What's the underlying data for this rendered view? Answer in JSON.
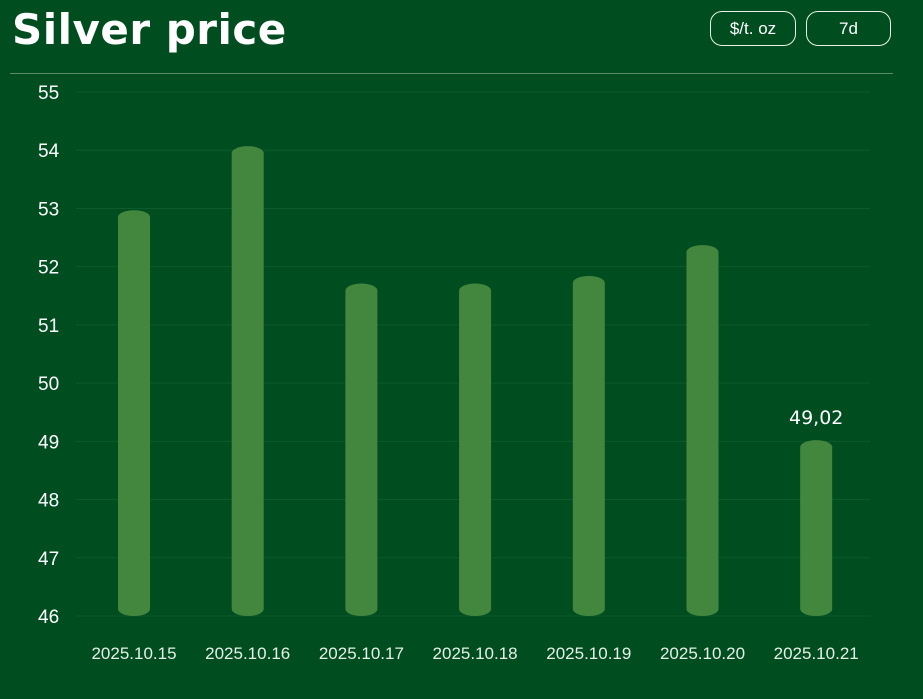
{
  "header": {
    "title": "Silver price",
    "unit_button": "$/t. oz",
    "range_button": "7d"
  },
  "colors": {
    "background": "#004d20",
    "bar": "#43873f",
    "grid": "#0d5a2a"
  },
  "chart_data": {
    "type": "bar",
    "title": "Silver price",
    "xlabel": "",
    "ylabel": "",
    "categories": [
      "2025.10.15",
      "2025.10.16",
      "2025.10.17",
      "2025.10.18",
      "2025.10.19",
      "2025.10.20",
      "2025.10.21"
    ],
    "values": [
      52.97,
      54.07,
      51.71,
      51.71,
      51.84,
      52.37,
      49.02
    ],
    "ylim": [
      46,
      55
    ],
    "yticks": [
      55,
      54,
      53,
      52,
      51,
      50,
      49,
      48,
      47,
      46
    ],
    "annotations": [
      {
        "category": "2025.10.21",
        "text": "49,02"
      }
    ],
    "grid": true,
    "legend": "none"
  }
}
